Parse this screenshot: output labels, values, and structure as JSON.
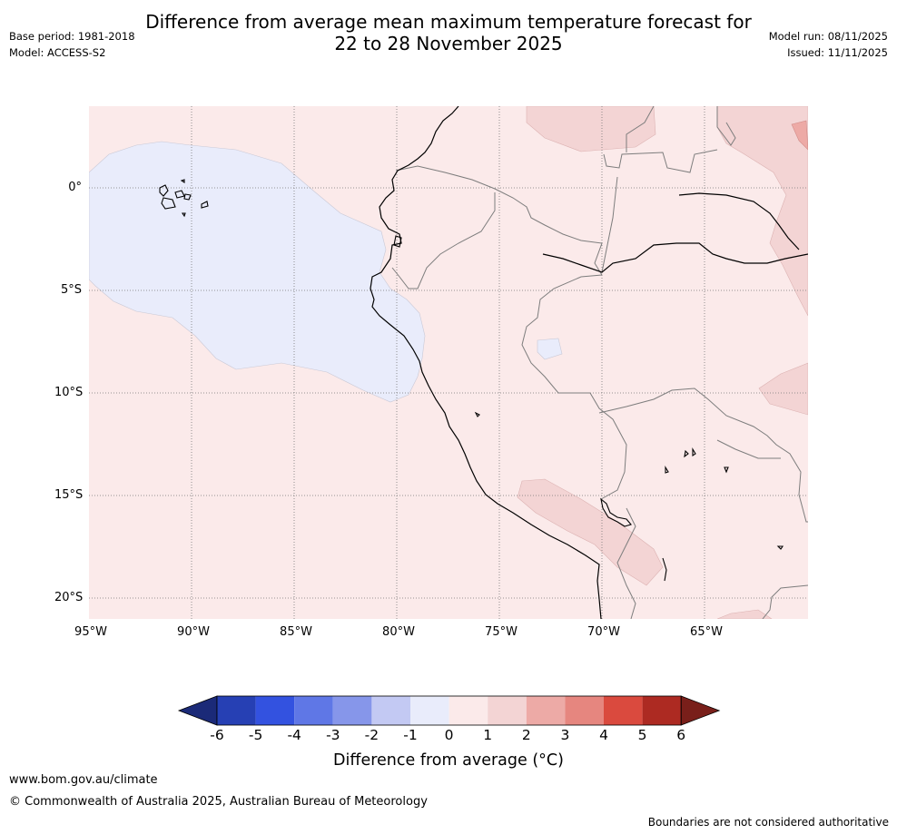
{
  "header": {
    "title_line1": "Difference from average mean maximum temperature forecast for",
    "title_line2": "22 to 28 November 2025",
    "base_period": "Base period: 1981-2018",
    "model": "Model: ACCESS-S2",
    "model_run": "Model run: 08/11/2025",
    "issued": "Issued: 11/11/2025"
  },
  "map": {
    "lat_labels": [
      "0°",
      "5°S",
      "10°S",
      "15°S",
      "20°S"
    ],
    "lon_labels": [
      "95°W",
      "90°W",
      "85°W",
      "80°W",
      "75°W",
      "70°W",
      "65°W"
    ],
    "background_anomaly_class": "0 to 1",
    "regions": [
      {
        "name": "eastern Pacific off Ecuador/Peru and Galapagos",
        "class": "-1 to 0"
      },
      {
        "name": "Amazon interior and Peru/Bolivia Altiplano",
        "class": "0 to 1"
      },
      {
        "name": "northern Amazon band and southern Peru/Bolivia strip",
        "class": "1 to 2"
      },
      {
        "name": "far north-east corner",
        "class": "2 to 3"
      }
    ]
  },
  "colorbar": {
    "tick_labels": [
      "-6",
      "-5",
      "-4",
      "-3",
      "-2",
      "-1",
      "0",
      "1",
      "2",
      "3",
      "4",
      "5",
      "6"
    ],
    "colors": [
      "#1b2a78",
      "#2640b4",
      "#3352e0",
      "#5f77e6",
      "#8696ea",
      "#c3c9f3",
      "#e9ecfb",
      "#fbeaea",
      "#f3d4d4",
      "#edaaa6",
      "#e6867f",
      "#da4a3e",
      "#ad2a22",
      "#791f1a"
    ],
    "label": "Difference from average (°C)"
  },
  "footer": {
    "url": "www.bom.gov.au/climate",
    "copyright": "© Commonwealth of Australia 2025, Australian Bureau of Meteorology",
    "disclaimer": "Boundaries are not considered authoritative"
  }
}
